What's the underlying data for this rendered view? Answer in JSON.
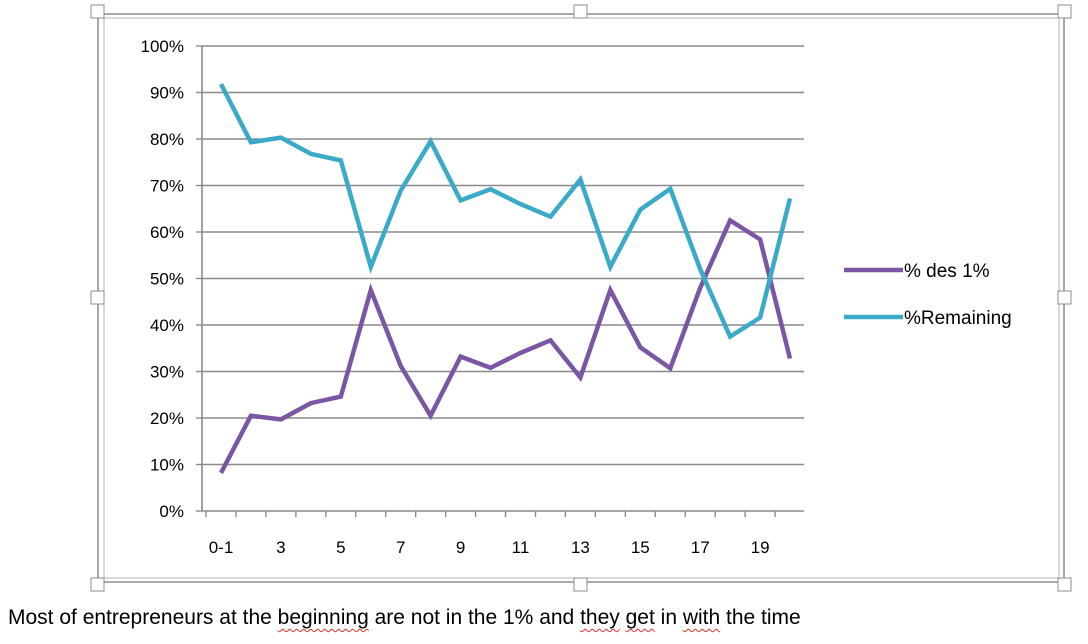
{
  "chart_data": {
    "type": "line",
    "title": "",
    "xlabel": "",
    "ylabel": "",
    "x": [
      "0-1",
      "2",
      "3",
      "4",
      "5",
      "6",
      "7",
      "8",
      "9",
      "10",
      "11",
      "12",
      "13",
      "14",
      "15",
      "16",
      "17",
      "18",
      "19",
      "20"
    ],
    "x_tick_labels": [
      "0-1",
      "3",
      "5",
      "7",
      "9",
      "11",
      "13",
      "15",
      "17",
      "19"
    ],
    "y_tick_labels": [
      "0%",
      "10%",
      "20%",
      "30%",
      "40%",
      "50%",
      "60%",
      "70%",
      "80%",
      "90%",
      "100%"
    ],
    "ylim": [
      0,
      100
    ],
    "grid": "horizontal",
    "legend_position": "right",
    "series": [
      {
        "name": "% des 1%",
        "color": "#7b56a4",
        "values": [
          8.2,
          20.5,
          19.7,
          23.2,
          24.6,
          47.5,
          31.2,
          20.5,
          33.2,
          30.8,
          34.0,
          36.7,
          28.7,
          47.5,
          35.2,
          30.7,
          48.0,
          62.5,
          58.4,
          32.8
        ]
      },
      {
        "name": "%Remaining",
        "color": "#3aaac8",
        "values": [
          91.8,
          79.3,
          80.3,
          76.8,
          75.4,
          52.5,
          68.9,
          79.5,
          66.8,
          69.2,
          66.0,
          63.3,
          71.3,
          52.5,
          64.8,
          69.3,
          52.0,
          37.5,
          41.6,
          67.2
        ]
      }
    ]
  },
  "caption": {
    "part1": "Most of entrepreneurs at the ",
    "word_beginning": "beginning",
    "part2": " are not in the 1% and ",
    "word_they": "they",
    "space1": " ",
    "word_get": "get",
    "part3": " in ",
    "word_with": "with",
    "part4": " the time"
  }
}
